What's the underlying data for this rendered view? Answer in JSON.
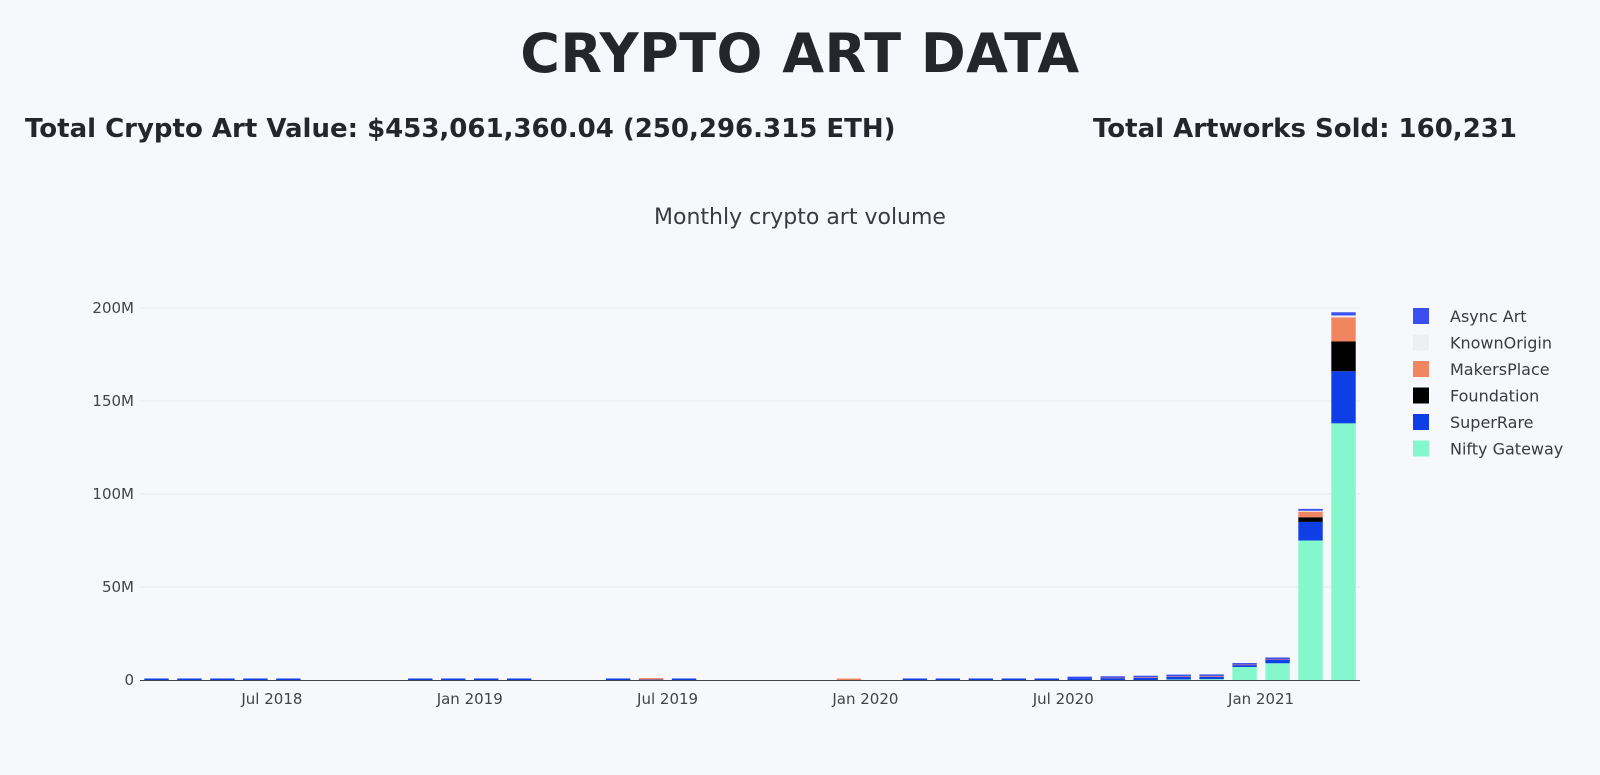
{
  "header": {
    "title": "CRYPTO ART DATA",
    "total_value": "Total Crypto Art Value: $453,061,360.04 (250,296.315 ETH)",
    "total_sold": "Total Artworks Sold: 160,231"
  },
  "chart_data": {
    "type": "bar",
    "stacked": true,
    "title": "Monthly crypto art volume",
    "xlabel": "",
    "ylabel": "",
    "ylim": [
      0,
      200000000
    ],
    "y_ticks": [
      0,
      50000000,
      100000000,
      150000000,
      200000000
    ],
    "y_tick_labels": [
      "0",
      "50M",
      "100M",
      "150M",
      "200M"
    ],
    "x_tick_labels": [
      {
        "label": "Jul 2018",
        "month": "2018-07"
      },
      {
        "label": "Jan 2019",
        "month": "2019-01"
      },
      {
        "label": "Jul 2019",
        "month": "2019-07"
      },
      {
        "label": "Jan 2020",
        "month": "2020-01"
      },
      {
        "label": "Jul 2020",
        "month": "2020-07"
      },
      {
        "label": "Jan 2021",
        "month": "2021-01"
      }
    ],
    "grid": true,
    "legend_position": "right",
    "categories": [
      "2018-03",
      "2018-04",
      "2018-05",
      "2018-06",
      "2018-07",
      "2018-08",
      "2018-09",
      "2018-10",
      "2018-11",
      "2018-12",
      "2019-01",
      "2019-02",
      "2019-03",
      "2019-04",
      "2019-05",
      "2019-06",
      "2019-07",
      "2019-08",
      "2019-09",
      "2019-10",
      "2019-11",
      "2019-12",
      "2020-01",
      "2020-02",
      "2020-03",
      "2020-04",
      "2020-05",
      "2020-06",
      "2020-07",
      "2020-08",
      "2020-09",
      "2020-10",
      "2020-11",
      "2020-12",
      "2021-01",
      "2021-02",
      "2021-03"
    ],
    "series": [
      {
        "name": "Nifty Gateway",
        "color": "#84f7cd",
        "values": [
          0,
          0,
          0,
          0,
          0,
          0,
          0,
          0,
          0,
          0,
          0,
          0,
          0,
          0,
          0,
          0,
          0,
          0,
          0,
          0,
          0,
          0,
          0,
          0,
          0,
          0,
          0,
          0,
          0,
          0,
          0,
          300000,
          500000,
          7000000,
          9000000,
          75000000,
          138000000
        ]
      },
      {
        "name": "SuperRare",
        "color": "#0d3ee6",
        "values": [
          400000,
          300000,
          200000,
          300000,
          300000,
          0,
          0,
          0,
          400000,
          400000,
          400000,
          400000,
          0,
          0,
          400000,
          200000,
          400000,
          0,
          0,
          0,
          0,
          0,
          0,
          200000,
          300000,
          300000,
          300000,
          300000,
          1000000,
          1000000,
          1200000,
          1500000,
          1300000,
          1000000,
          2000000,
          10000000,
          28000000
        ]
      },
      {
        "name": "Foundation",
        "color": "#000000",
        "values": [
          0,
          0,
          0,
          0,
          0,
          0,
          0,
          0,
          0,
          0,
          0,
          0,
          0,
          0,
          0,
          0,
          0,
          0,
          0,
          0,
          0,
          0,
          0,
          0,
          0,
          0,
          0,
          0,
          0,
          0,
          0,
          0,
          0,
          0,
          0,
          2500000,
          16000000
        ]
      },
      {
        "name": "MakersPlace",
        "color": "#ef8660",
        "values": [
          0,
          0,
          0,
          0,
          0,
          0,
          0,
          0,
          0,
          0,
          0,
          0,
          0,
          0,
          0,
          500000,
          0,
          0,
          0,
          0,
          0,
          500000,
          0,
          0,
          0,
          0,
          0,
          0,
          0,
          200000,
          300000,
          300000,
          400000,
          300000,
          300000,
          3000000,
          13000000
        ]
      },
      {
        "name": "KnownOrigin",
        "color": "#eeeff1",
        "values": [
          0,
          0,
          0,
          0,
          0,
          0,
          0,
          0,
          0,
          0,
          0,
          0,
          0,
          0,
          0,
          0,
          0,
          0,
          0,
          0,
          0,
          0,
          0,
          0,
          0,
          0,
          0,
          0,
          0,
          0,
          0,
          0,
          0,
          0,
          0,
          500000,
          1000000
        ]
      },
      {
        "name": "Async Art",
        "color": "#3b4ef2",
        "values": [
          0,
          0,
          0,
          0,
          0,
          0,
          0,
          0,
          0,
          0,
          0,
          0,
          0,
          0,
          0,
          0,
          0,
          0,
          0,
          0,
          0,
          0,
          0,
          0,
          0,
          0,
          0,
          0,
          200000,
          300000,
          600000,
          700000,
          700000,
          600000,
          700000,
          1000000,
          1700000
        ]
      }
    ],
    "legend_order": [
      "Async Art",
      "KnownOrigin",
      "MakersPlace",
      "Foundation",
      "SuperRare",
      "Nifty Gateway"
    ]
  }
}
